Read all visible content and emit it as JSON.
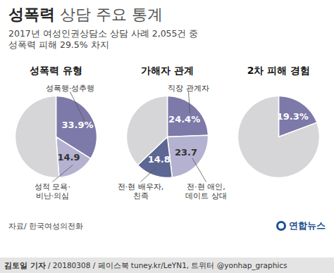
{
  "title": "성폭력 상담 주요 통계",
  "subtitle": [
    "2017년 여성인권상담소 상담 사례 2,055건 중",
    "성폭력 피해 29.5% 차지"
  ],
  "chart_data": [
    {
      "type": "pie",
      "title": "성폭력 유형",
      "categories": [
        "성폭행·성추행",
        "성적 모욕·\n비난·의심",
        null
      ],
      "values": [
        33.9,
        14.9,
        51.2
      ],
      "value_labels": [
        "33.9%",
        "14.9",
        null
      ],
      "colors": [
        "#7d79a8",
        "#b4b2d0",
        "#d6d6d8"
      ],
      "data_labels": true
    },
    {
      "type": "pie",
      "title": "가해자 관계",
      "categories": [
        "직장 관계자",
        "전·현 애인,\n데이트 상대",
        "전·현 배우자,\n친족",
        null
      ],
      "values": [
        24.4,
        23.7,
        14.8,
        37.1
      ],
      "value_labels": [
        "24.4%",
        "23.7",
        "14.8",
        null
      ],
      "colors": [
        "#7d79a8",
        "#b4b2d0",
        "#5d6793",
        "#d6d6d8"
      ],
      "data_labels": true
    },
    {
      "type": "pie",
      "title": "2차 피해 경험",
      "categories": [
        null,
        null
      ],
      "values": [
        19.3,
        80.7
      ],
      "value_labels": [
        "19.3%",
        null
      ],
      "colors": [
        "#7d79a8",
        "#d6d6d8"
      ],
      "data_labels": true
    }
  ],
  "source": "자료/ 한국여성의전화",
  "logo": "연합뉴스",
  "credit": "김토일 기자 / 20180308 / 페이스북 tuney.kr/LeYN1, 트위터 @yonhap_graphics"
}
